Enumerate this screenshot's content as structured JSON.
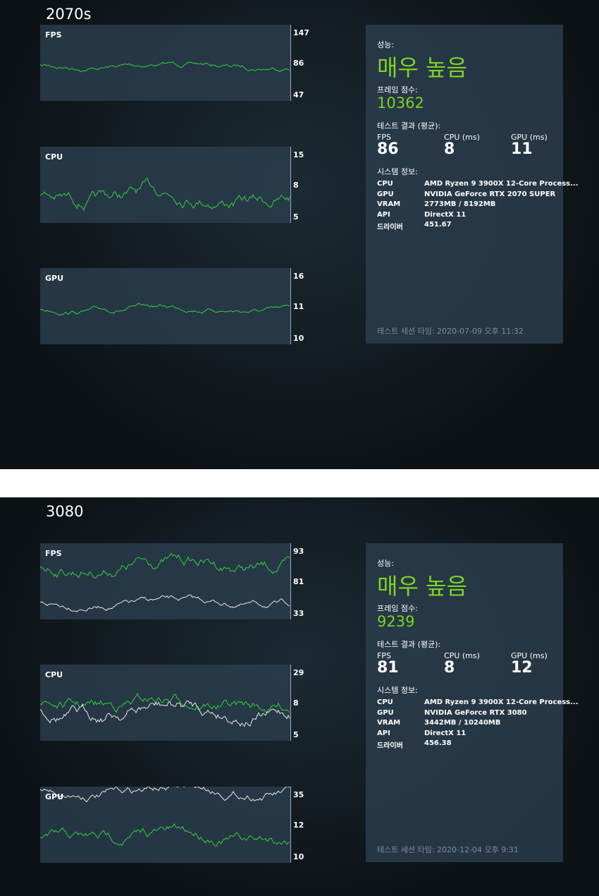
{
  "sections": [
    {
      "title": "2070s",
      "graphs": [
        {
          "label": "FPS",
          "ticks": [
            "147",
            "86",
            "47"
          ]
        },
        {
          "label": "CPU",
          "ticks": [
            "15",
            "8",
            "5"
          ]
        },
        {
          "label": "GPU",
          "ticks": [
            "16",
            "11",
            "10"
          ]
        }
      ],
      "summary": {
        "performance_label": "성능:",
        "performance": "매우 높음",
        "score_label": "프레임 점수:",
        "score": "10362",
        "results_label": "테스트 결과 (평균):",
        "results": [
          {
            "label": "FPS",
            "value": "86"
          },
          {
            "label": "CPU (ms)",
            "value": "8"
          },
          {
            "label": "GPU (ms)",
            "value": "11"
          }
        ],
        "system_label": "시스템 정보:",
        "system": [
          {
            "key": "CPU",
            "value": "AMD Ryzen 9 3900X 12-Core Process..."
          },
          {
            "key": "GPU",
            "value": "NVIDIA GeForce RTX 2070 SUPER"
          },
          {
            "key": "VRAM",
            "value": "2773MB / 8192MB"
          },
          {
            "key": "API",
            "value": "DirectX 11"
          },
          {
            "key": "드라이버",
            "value": "451.67"
          }
        ],
        "session": "테스트 세션 타임: 2020-07-09 오후 11:32"
      }
    },
    {
      "title": "3080",
      "graphs": [
        {
          "label": "FPS",
          "ticks": [
            "93",
            "81",
            "33"
          ]
        },
        {
          "label": "CPU",
          "ticks": [
            "29",
            "8",
            "5"
          ]
        },
        {
          "label": "GPU",
          "ticks": [
            "35",
            "12",
            "10"
          ]
        }
      ],
      "summary": {
        "performance_label": "성능:",
        "performance": "매우 높음",
        "score_label": "프레임 점수:",
        "score": "9239",
        "results_label": "테스트 결과 (평균):",
        "results": [
          {
            "label": "FPS",
            "value": "81"
          },
          {
            "label": "CPU (ms)",
            "value": "8"
          },
          {
            "label": "GPU (ms)",
            "value": "12"
          }
        ],
        "system_label": "시스템 정보:",
        "system": [
          {
            "key": "CPU",
            "value": "AMD Ryzen 9 3900X 12-Core Process..."
          },
          {
            "key": "GPU",
            "value": "NVIDIA GeForce RTX 3080"
          },
          {
            "key": "VRAM",
            "value": "3442MB / 10240MB"
          },
          {
            "key": "API",
            "value": "DirectX 11"
          },
          {
            "key": "드라이버",
            "value": "456.38"
          }
        ],
        "session": "테스트 세션 타임: 2020-12-04 오후 9:31"
      }
    }
  ]
}
